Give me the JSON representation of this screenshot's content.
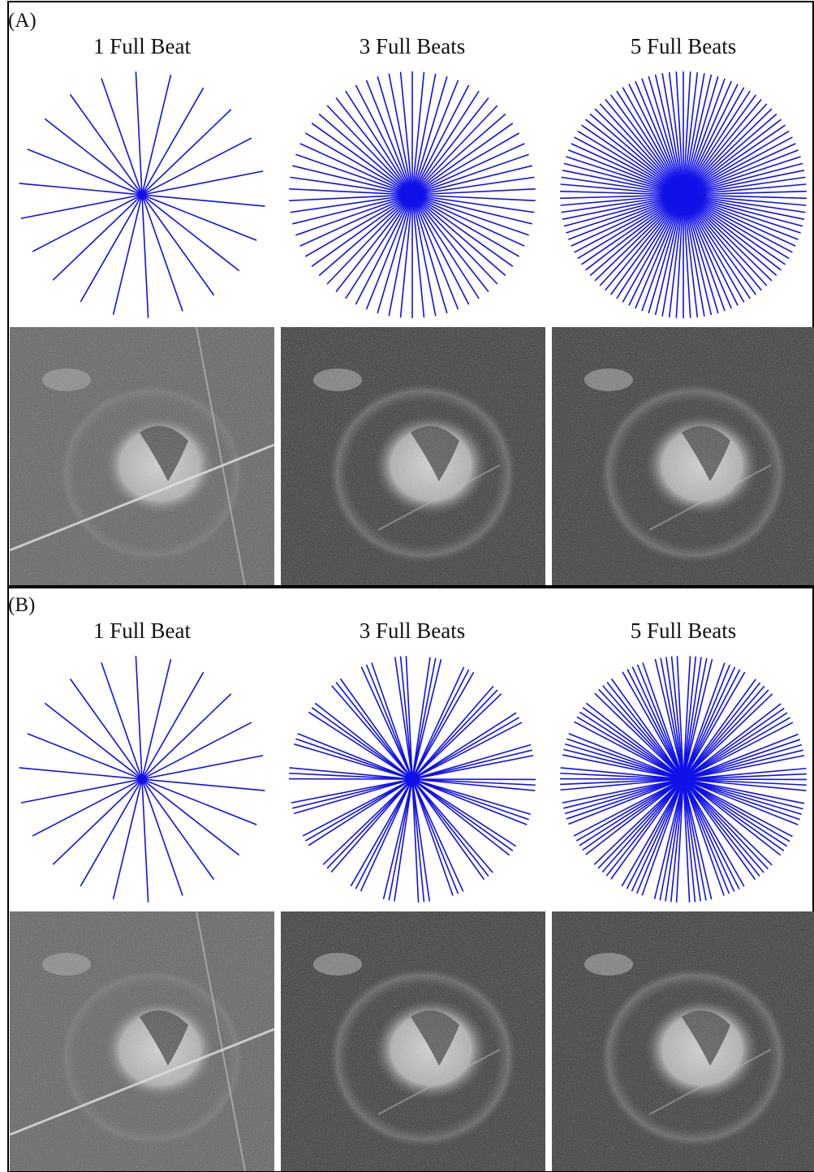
{
  "panels": [
    {
      "label": "(A)",
      "columns": [
        {
          "title": "1 Full Beat"
        },
        {
          "title": "3 Full Beats"
        },
        {
          "title": "5 Full Beats"
        }
      ]
    },
    {
      "label": "(B)",
      "columns": [
        {
          "title": "1 Full Beat"
        },
        {
          "title": "3 Full Beats"
        },
        {
          "title": "5 Full Beats"
        }
      ]
    }
  ]
}
